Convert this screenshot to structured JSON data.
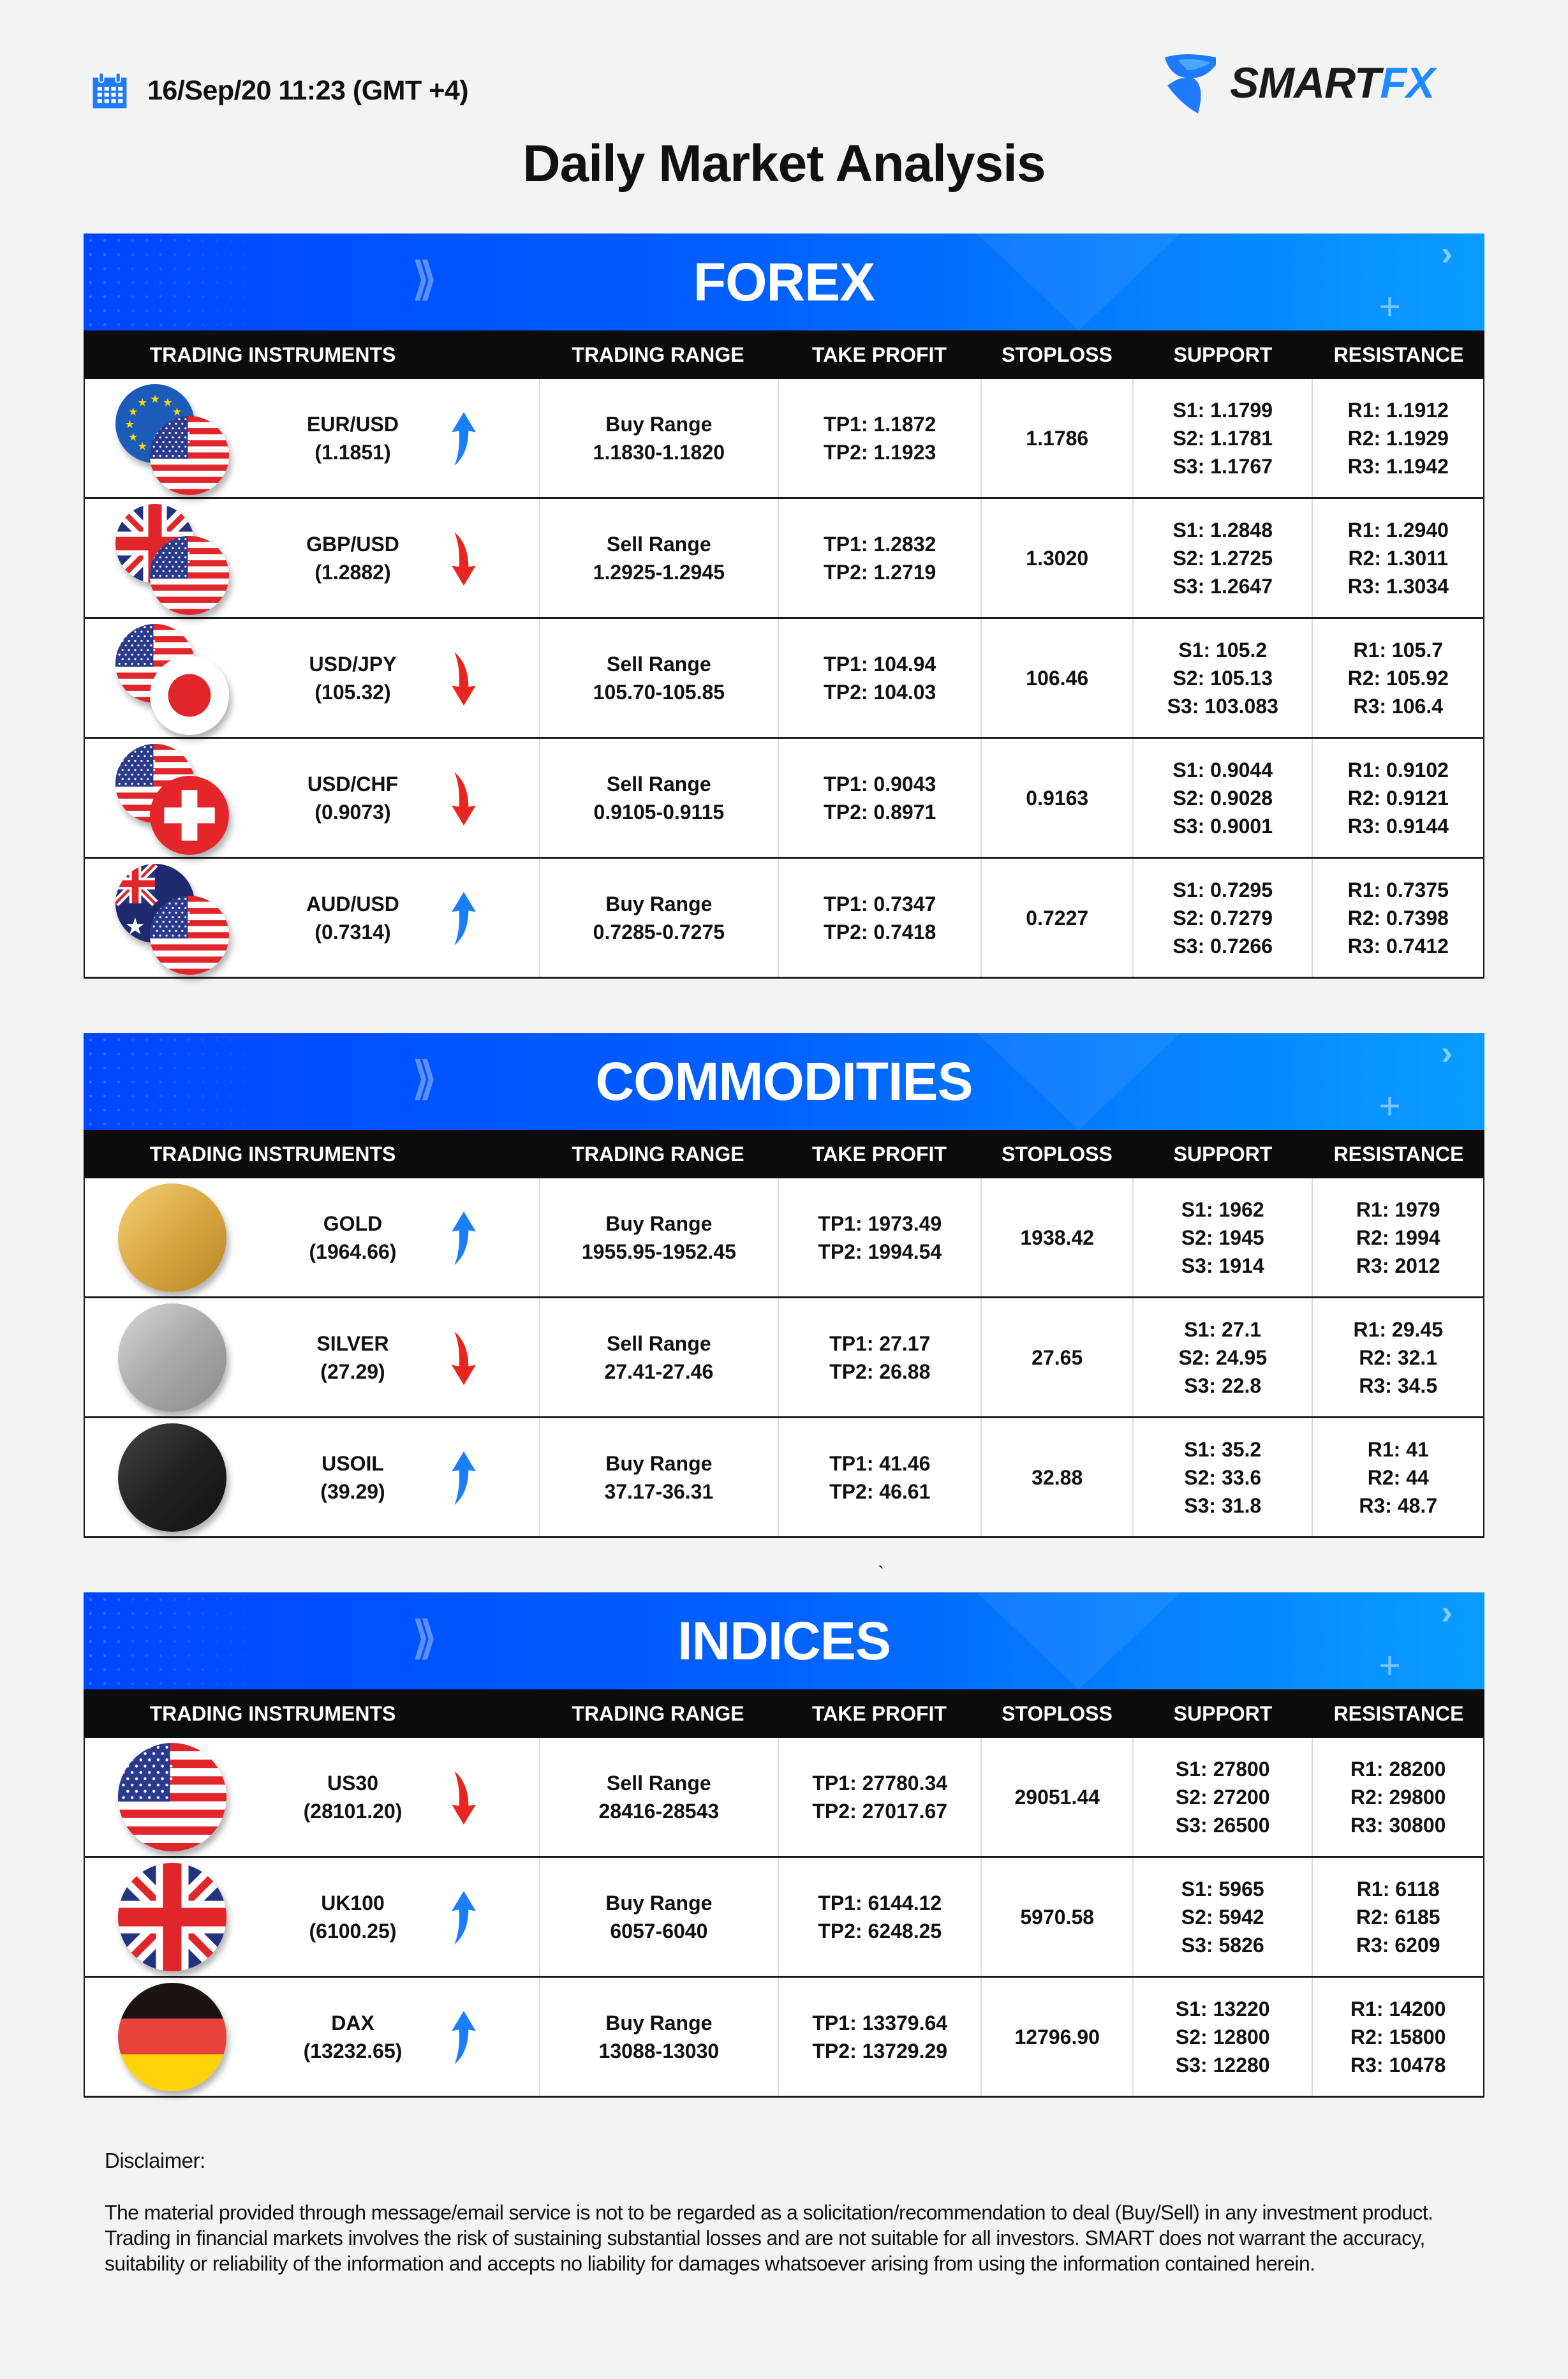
{
  "header": {
    "date": "16/Sep/20 11:23 (GMT +4)",
    "logo": {
      "part1": "SMART",
      "part2": "FX"
    },
    "title": "Daily Market Analysis"
  },
  "colors": {
    "accent": "#0061ff",
    "up": "#1a7fff",
    "down": "#e8261f",
    "header_bg": "#0c0c0c"
  },
  "columns": [
    "TRADING INSTRUMENTS",
    "TRADING RANGE",
    "TAKE PROFIT",
    "STOPLOSS",
    "SUPPORT",
    "RESISTANCE"
  ],
  "sections": [
    {
      "title": "FOREX",
      "rows": [
        {
          "name": "EUR/USD",
          "price": "(1.1851)",
          "flags": [
            "eu",
            "us"
          ],
          "direction": "up",
          "range_label": "Buy Range",
          "range": "1.1830-1.1820",
          "tp1": "TP1: 1.1872",
          "tp2": "TP2: 1.1923",
          "stoploss": "1.1786",
          "s1": "S1: 1.1799",
          "s2": "S2: 1.1781",
          "s3": "S3: 1.1767",
          "r1": "R1: 1.1912",
          "r2": "R2: 1.1929",
          "r3": "R3: 1.1942"
        },
        {
          "name": "GBP/USD",
          "price": "(1.2882)",
          "flags": [
            "gb",
            "us"
          ],
          "direction": "down",
          "range_label": "Sell Range",
          "range": "1.2925-1.2945",
          "tp1": "TP1: 1.2832",
          "tp2": "TP2: 1.2719",
          "stoploss": "1.3020",
          "s1": "S1: 1.2848",
          "s2": "S2: 1.2725",
          "s3": "S3: 1.2647",
          "r1": "R1: 1.2940",
          "r2": "R2: 1.3011",
          "r3": "R3: 1.3034"
        },
        {
          "name": "USD/JPY",
          "price": "(105.32)",
          "flags": [
            "us",
            "jp"
          ],
          "direction": "down",
          "range_label": "Sell Range",
          "range": "105.70-105.85",
          "tp1": "TP1: 104.94",
          "tp2": "TP2: 104.03",
          "stoploss": "106.46",
          "s1": "S1: 105.2",
          "s2": "S2: 105.13",
          "s3": "S3: 103.083",
          "r1": "R1: 105.7",
          "r2": "R2: 105.92",
          "r3": "R3: 106.4"
        },
        {
          "name": "USD/CHF",
          "price": "(0.9073)",
          "flags": [
            "us",
            "ch"
          ],
          "direction": "down",
          "range_label": "Sell Range",
          "range": "0.9105-0.9115",
          "tp1": "TP1: 0.9043",
          "tp2": "TP2: 0.8971",
          "stoploss": "0.9163",
          "s1": "S1: 0.9044",
          "s2": "S2: 0.9028",
          "s3": "S3: 0.9001",
          "r1": "R1: 0.9102",
          "r2": "R2: 0.9121",
          "r3": "R3: 0.9144"
        },
        {
          "name": "AUD/USD",
          "price": "(0.7314)",
          "flags": [
            "au",
            "us"
          ],
          "direction": "up",
          "range_label": "Buy Range",
          "range": "0.7285-0.7275",
          "tp1": "TP1: 0.7347",
          "tp2": "TP2: 0.7418",
          "stoploss": "0.7227",
          "s1": "S1: 0.7295",
          "s2": "S2: 0.7279",
          "s3": "S3: 0.7266",
          "r1": "R1: 0.7375",
          "r2": "R2: 0.7398",
          "r3": "R3: 0.7412"
        }
      ]
    },
    {
      "title": "COMMODITIES",
      "rows": [
        {
          "name": "GOLD",
          "price": "(1964.66)",
          "flags": [
            "gold"
          ],
          "direction": "up",
          "range_label": "Buy Range",
          "range": "1955.95-1952.45",
          "tp1": "TP1: 1973.49",
          "tp2": "TP2: 1994.54",
          "stoploss": "1938.42",
          "s1": "S1: 1962",
          "s2": "S2: 1945",
          "s3": "S3: 1914",
          "r1": "R1: 1979",
          "r2": "R2: 1994",
          "r3": "R3: 2012"
        },
        {
          "name": "SILVER",
          "price": "(27.29)",
          "flags": [
            "silver"
          ],
          "direction": "down",
          "range_label": "Sell Range",
          "range": "27.41-27.46",
          "tp1": "TP1: 27.17",
          "tp2": "TP2: 26.88",
          "stoploss": "27.65",
          "s1": "S1: 27.1",
          "s2": "S2: 24.95",
          "s3": "S3: 22.8",
          "r1": "R1: 29.45",
          "r2": "R2: 32.1",
          "r3": "R3: 34.5"
        },
        {
          "name": "USOIL",
          "price": "(39.29)",
          "flags": [
            "oil"
          ],
          "direction": "up",
          "range_label": "Buy Range",
          "range": "37.17-36.31",
          "tp1": "TP1: 41.46",
          "tp2": "TP2: 46.61",
          "stoploss": "32.88",
          "s1": "S1: 35.2",
          "s2": "S2: 33.6",
          "s3": "S3: 31.8",
          "r1": "R1: 41",
          "r2": "R2: 44",
          "r3": "R3: 48.7"
        }
      ]
    },
    {
      "title": "INDICES",
      "rows": [
        {
          "name": "US30",
          "price": "(28101.20)",
          "flags": [
            "us"
          ],
          "direction": "down",
          "range_label": "Sell Range",
          "range": "28416-28543",
          "tp1": "TP1: 27780.34",
          "tp2": "TP2: 27017.67",
          "stoploss": "29051.44",
          "s1": "S1: 27800",
          "s2": "S2: 27200",
          "s3": "S3: 26500",
          "r1": "R1: 28200",
          "r2": "R2: 29800",
          "r3": "R3: 30800"
        },
        {
          "name": "UK100",
          "price": "(6100.25)",
          "flags": [
            "gb"
          ],
          "direction": "up",
          "range_label": "Buy Range",
          "range": "6057-6040",
          "tp1": "TP1: 6144.12",
          "tp2": "TP2: 6248.25",
          "stoploss": "5970.58",
          "s1": "S1: 5965",
          "s2": "S2: 5942",
          "s3": "S3: 5826",
          "r1": "R1: 6118",
          "r2": "R2: 6185",
          "r3": "R3: 6209"
        },
        {
          "name": "DAX",
          "price": "(13232.65)",
          "flags": [
            "de"
          ],
          "direction": "up",
          "range_label": "Buy Range",
          "range": "13088-13030",
          "tp1": "TP1: 13379.64",
          "tp2": "TP2: 13729.29",
          "stoploss": "12796.90",
          "s1": "S1: 13220",
          "s2": "S2: 12800",
          "s3": "S3: 12280",
          "r1": "R1: 14200",
          "r2": "R2: 15800",
          "r3": "R3: 10478"
        }
      ]
    }
  ],
  "stray_mark": "`",
  "disclaimer": {
    "label": "Disclaimer:",
    "text": "The material provided through message/email service is not to be regarded as a solicitation/recommendation to deal (Buy/Sell) in any investment product. Trading in financial markets involves the risk of sustaining substantial losses and are not suitable for all investors. SMART does not warrant the accuracy, suitability or reliability of the information and accepts no liability for damages whatsoever arising from using the information contained herein."
  }
}
